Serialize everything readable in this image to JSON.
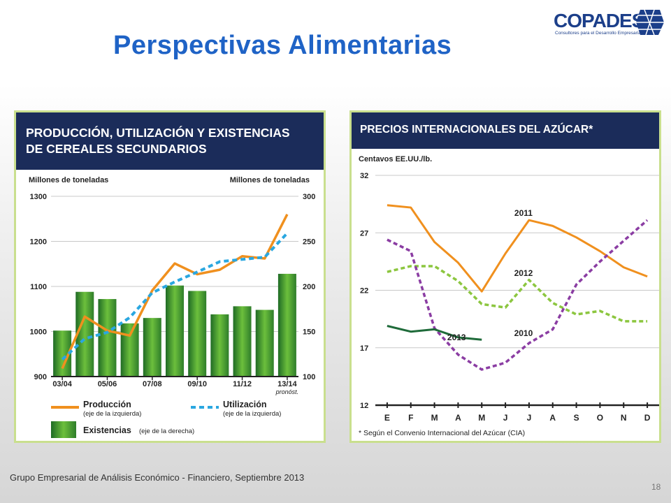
{
  "slide": {
    "title": "Perspectivas Alimentarias",
    "footer": "Grupo Empresarial de Análisis Económico - Financiero, Septiembre 2013",
    "page_number": "18",
    "logo": {
      "name": "COPADES",
      "tagline": "Consultores para el Desarrollo Empresarial",
      "color": "#1c3f8a"
    }
  },
  "chart_data": [
    {
      "type": "bar",
      "title_lines": [
        "PRODUCCIÓN, UTILIZACIÓN Y EXISTENCIAS",
        "DE CEREALES SECUNDARIOS"
      ],
      "ylabel_left": "Millones de toneladas",
      "ylabel_right": "Millones de toneladas",
      "ylim_left": [
        900,
        1300
      ],
      "ylim_right": [
        100,
        300
      ],
      "yticks_left": [
        "900",
        "1000",
        "1100",
        "1200",
        "1300"
      ],
      "yticks_right": [
        "100",
        "150",
        "200",
        "250",
        "300"
      ],
      "xtick_labels": [
        "03/04",
        "05/06",
        "07/08",
        "09/10",
        "11/12",
        "13/14"
      ],
      "xtick_sublabel": "pronóst.",
      "x": [
        1,
        2,
        3,
        4,
        5,
        6,
        7,
        8,
        9,
        10,
        11
      ],
      "grid": true,
      "bars": {
        "name": "Existencias",
        "axis": "right",
        "values": [
          151,
          194,
          186,
          159,
          165,
          201,
          195,
          169,
          178,
          174,
          214
        ],
        "color": "#3d8f2e"
      },
      "series": [
        {
          "name": "Producción",
          "axis": "left",
          "style": "solid",
          "color": "#f0901e",
          "values": [
            918,
            1033,
            1002,
            991,
            1091,
            1151,
            1127,
            1137,
            1167,
            1162,
            1260
          ]
        },
        {
          "name": "Utilización",
          "axis": "left",
          "style": "dashed",
          "color": "#2aa7e0",
          "values": [
            938,
            984,
            998,
            1031,
            1086,
            1110,
            1132,
            1155,
            1160,
            1165,
            1218
          ]
        }
      ],
      "legend": [
        {
          "label": "Producción",
          "note": "(eje de la izquierda)"
        },
        {
          "label": "Utilización",
          "note": "(eje de la izquierda)"
        },
        {
          "label": "Existencias",
          "note": "(eje de la derecha)"
        }
      ]
    },
    {
      "type": "line",
      "title": "PRECIOS INTERNACIONALES DEL AZÚCAR*",
      "ylabel": "Centavos EE.UU./lb.",
      "ylim": [
        12,
        32
      ],
      "yticks": [
        "12",
        "17",
        "22",
        "27",
        "32"
      ],
      "categories": [
        "E",
        "F",
        "M",
        "A",
        "M",
        "J",
        "J",
        "A",
        "S",
        "O",
        "N",
        "D"
      ],
      "grid": true,
      "footnote": "* Según el Convenio Internacional del Azúcar (CIA)",
      "series": [
        {
          "name": "2011",
          "style": "solid",
          "color": "#f0901e",
          "values": [
            29.4,
            29.2,
            26.2,
            24.4,
            21.9,
            25.2,
            28.1,
            27.6,
            26.6,
            25.4,
            24.0,
            23.2
          ]
        },
        {
          "name": "2012",
          "style": "dashed",
          "color": "#8cc63f",
          "values": [
            23.6,
            24.1,
            24.1,
            22.8,
            20.8,
            20.5,
            22.9,
            20.9,
            19.9,
            20.2,
            19.3,
            19.3
          ]
        },
        {
          "name": "2010",
          "style": "dashed",
          "color": "#8b3da3",
          "values": [
            26.4,
            25.4,
            18.7,
            16.4,
            15.1,
            15.7,
            17.4,
            18.6,
            22.5,
            24.5,
            26.3,
            28.1
          ]
        },
        {
          "name": "2013",
          "style": "solid",
          "color": "#1f6b3a",
          "values": [
            18.9,
            18.4,
            18.6,
            17.9,
            17.7,
            null,
            null,
            null,
            null,
            null,
            null,
            null
          ]
        }
      ]
    }
  ]
}
